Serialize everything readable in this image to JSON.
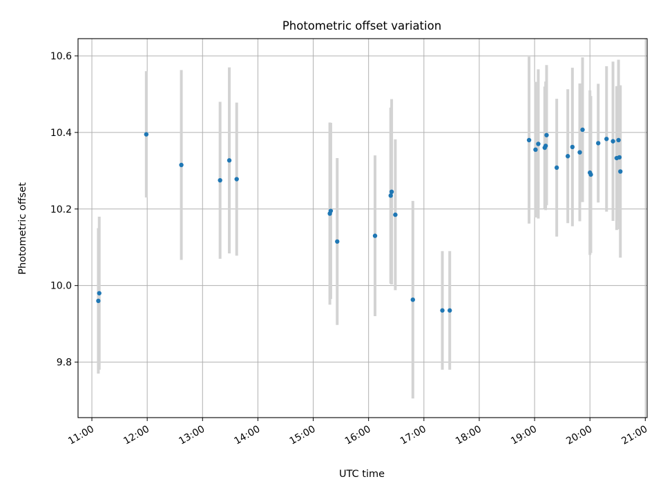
{
  "chart_data": {
    "type": "scatter",
    "title": "Photometric offset variation",
    "xlabel": "UTC time",
    "ylabel": "Photometric offset",
    "xlim": [
      "10:45",
      "21:02"
    ],
    "ylim": [
      9.655,
      10.645
    ],
    "grid": true,
    "x_ticks": [
      "11:00",
      "12:00",
      "13:00",
      "14:00",
      "15:00",
      "16:00",
      "17:00",
      "18:00",
      "19:00",
      "20:00",
      "21:00"
    ],
    "y_ticks": [
      "9.8",
      "10.0",
      "10.2",
      "10.4",
      "10.6"
    ],
    "colors": {
      "point": "#1f77b4",
      "errorbar": "#d3d3d3",
      "grid": "#b0b0b0"
    },
    "points": [
      {
        "x": "11:07",
        "y": 9.96,
        "err": 0.19
      },
      {
        "x": "11:08",
        "y": 9.98,
        "err": 0.2
      },
      {
        "x": "11:59",
        "y": 10.395,
        "err": 0.165
      },
      {
        "x": "12:37",
        "y": 10.315,
        "err": 0.248
      },
      {
        "x": "13:19",
        "y": 10.275,
        "err": 0.205
      },
      {
        "x": "13:29",
        "y": 10.327,
        "err": 0.243
      },
      {
        "x": "13:37",
        "y": 10.278,
        "err": 0.2
      },
      {
        "x": "15:18",
        "y": 10.188,
        "err": 0.238
      },
      {
        "x": "15:19",
        "y": 10.195,
        "err": 0.23
      },
      {
        "x": "15:26",
        "y": 10.115,
        "err": 0.218
      },
      {
        "x": "16:07",
        "y": 10.13,
        "err": 0.21
      },
      {
        "x": "16:24",
        "y": 10.235,
        "err": 0.23
      },
      {
        "x": "16:25",
        "y": 10.245,
        "err": 0.242
      },
      {
        "x": "16:29",
        "y": 10.185,
        "err": 0.197
      },
      {
        "x": "16:48",
        "y": 9.963,
        "err": 0.258
      },
      {
        "x": "17:20",
        "y": 9.935,
        "err": 0.155
      },
      {
        "x": "17:28",
        "y": 9.935,
        "err": 0.155
      },
      {
        "x": "18:54",
        "y": 10.38,
        "err": 0.218
      },
      {
        "x": "19:01",
        "y": 10.355,
        "err": 0.177
      },
      {
        "x": "19:04",
        "y": 10.37,
        "err": 0.195
      },
      {
        "x": "19:11",
        "y": 10.36,
        "err": 0.16
      },
      {
        "x": "19:12",
        "y": 10.365,
        "err": 0.168
      },
      {
        "x": "19:13",
        "y": 10.393,
        "err": 0.183
      },
      {
        "x": "19:24",
        "y": 10.308,
        "err": 0.18
      },
      {
        "x": "19:36",
        "y": 10.338,
        "err": 0.175
      },
      {
        "x": "19:41",
        "y": 10.362,
        "err": 0.207
      },
      {
        "x": "19:49",
        "y": 10.348,
        "err": 0.18
      },
      {
        "x": "19:52",
        "y": 10.407,
        "err": 0.189
      },
      {
        "x": "20:00",
        "y": 10.295,
        "err": 0.215
      },
      {
        "x": "20:01",
        "y": 10.29,
        "err": 0.205
      },
      {
        "x": "20:09",
        "y": 10.372,
        "err": 0.155
      },
      {
        "x": "20:18",
        "y": 10.383,
        "err": 0.19
      },
      {
        "x": "20:25",
        "y": 10.377,
        "err": 0.208
      },
      {
        "x": "20:29",
        "y": 10.333,
        "err": 0.188
      },
      {
        "x": "20:31",
        "y": 10.38,
        "err": 0.21
      },
      {
        "x": "20:32",
        "y": 10.335,
        "err": 0.188
      },
      {
        "x": "20:33",
        "y": 10.298,
        "err": 0.225
      }
    ]
  }
}
